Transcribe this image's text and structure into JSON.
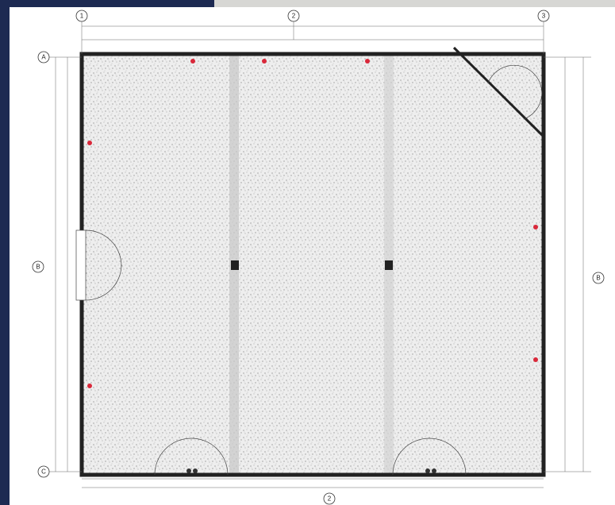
{
  "grid_bubbles": {
    "top": [
      "1",
      "2",
      "3"
    ],
    "left": [
      "A",
      "B",
      "C"
    ],
    "right": [
      "B"
    ],
    "bottom": [
      "2"
    ]
  }
}
